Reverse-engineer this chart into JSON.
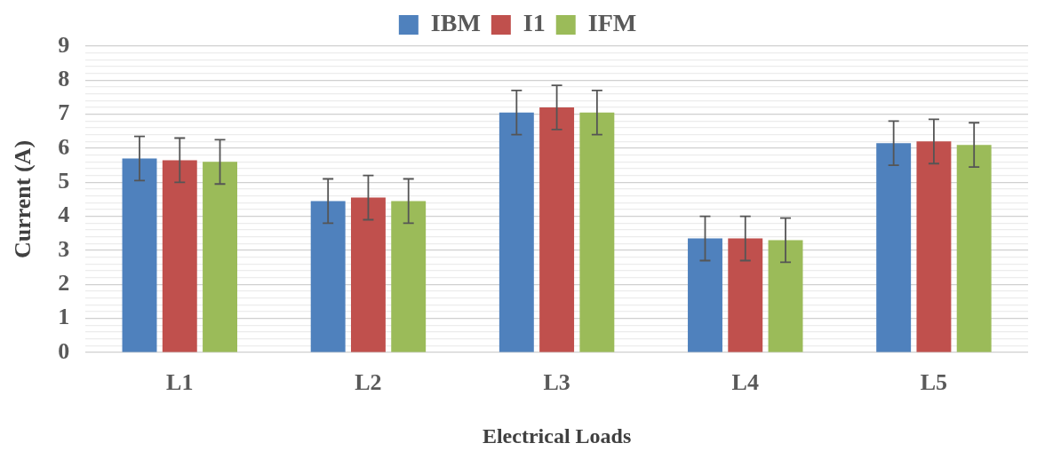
{
  "chart_data": {
    "type": "bar",
    "xlabel": "Electrical Loads",
    "ylabel": "Current (A)",
    "categories": [
      "L1",
      "L2",
      "L3",
      "L4",
      "L5"
    ],
    "series": [
      {
        "name": "IBM",
        "color": "#4f81bd",
        "values": [
          5.7,
          4.45,
          7.05,
          3.35,
          6.15
        ],
        "errors": [
          0.65,
          0.65,
          0.65,
          0.65,
          0.65
        ]
      },
      {
        "name": "I1",
        "color": "#c0504d",
        "values": [
          5.65,
          4.55,
          7.2,
          3.35,
          6.2
        ],
        "errors": [
          0.65,
          0.65,
          0.65,
          0.65,
          0.65
        ]
      },
      {
        "name": "IFM",
        "color": "#9bbb59",
        "values": [
          5.6,
          4.45,
          7.05,
          3.3,
          6.1
        ],
        "errors": [
          0.65,
          0.65,
          0.65,
          0.65,
          0.65
        ]
      }
    ],
    "ylim": [
      0,
      9
    ],
    "yticks": [
      0,
      {
        "value": 0.2,
        "label": null
      },
      {
        "value": 0.4,
        "label": null
      },
      {
        "value": 0.6,
        "label": null
      },
      {
        "value": 0.8,
        "label": null
      },
      1,
      {
        "value": 1.2,
        "label": null
      },
      {
        "value": 1.4,
        "label": null
      },
      {
        "value": 1.6,
        "label": null
      },
      {
        "value": 1.8,
        "label": null
      },
      2,
      {
        "value": 2.2,
        "label": null
      },
      {
        "value": 2.4,
        "label": null
      },
      {
        "value": 2.6,
        "label": null
      },
      {
        "value": 2.8,
        "label": null
      },
      3,
      {
        "value": 3.2,
        "label": null
      },
      {
        "value": 3.4,
        "label": null
      },
      {
        "value": 3.6,
        "label": null
      },
      {
        "value": 3.8,
        "label": null
      },
      4,
      {
        "value": 4.2,
        "label": null
      },
      {
        "value": 4.4,
        "label": null
      },
      {
        "value": 4.6,
        "label": null
      },
      {
        "value": 4.8,
        "label": null
      },
      5,
      {
        "value": 5.2,
        "label": null
      },
      {
        "value": 5.4,
        "label": null
      },
      {
        "value": 5.6,
        "label": null
      },
      {
        "value": 5.8,
        "label": null
      },
      6,
      {
        "value": 6.2,
        "label": null
      },
      {
        "value": 6.4,
        "label": null
      },
      {
        "value": 6.6,
        "label": null
      },
      {
        "value": 6.8,
        "label": null
      },
      7,
      {
        "value": 7.2,
        "label": null
      },
      {
        "value": 7.4,
        "label": null
      },
      {
        "value": 7.6,
        "label": null
      },
      {
        "value": 7.8,
        "label": null
      },
      8,
      {
        "value": 8.2,
        "label": null
      },
      {
        "value": 8.4,
        "label": null
      },
      {
        "value": 8.6,
        "label": null
      },
      {
        "value": 8.8,
        "label": null
      },
      9
    ],
    "grid": "y",
    "legend": "top"
  }
}
